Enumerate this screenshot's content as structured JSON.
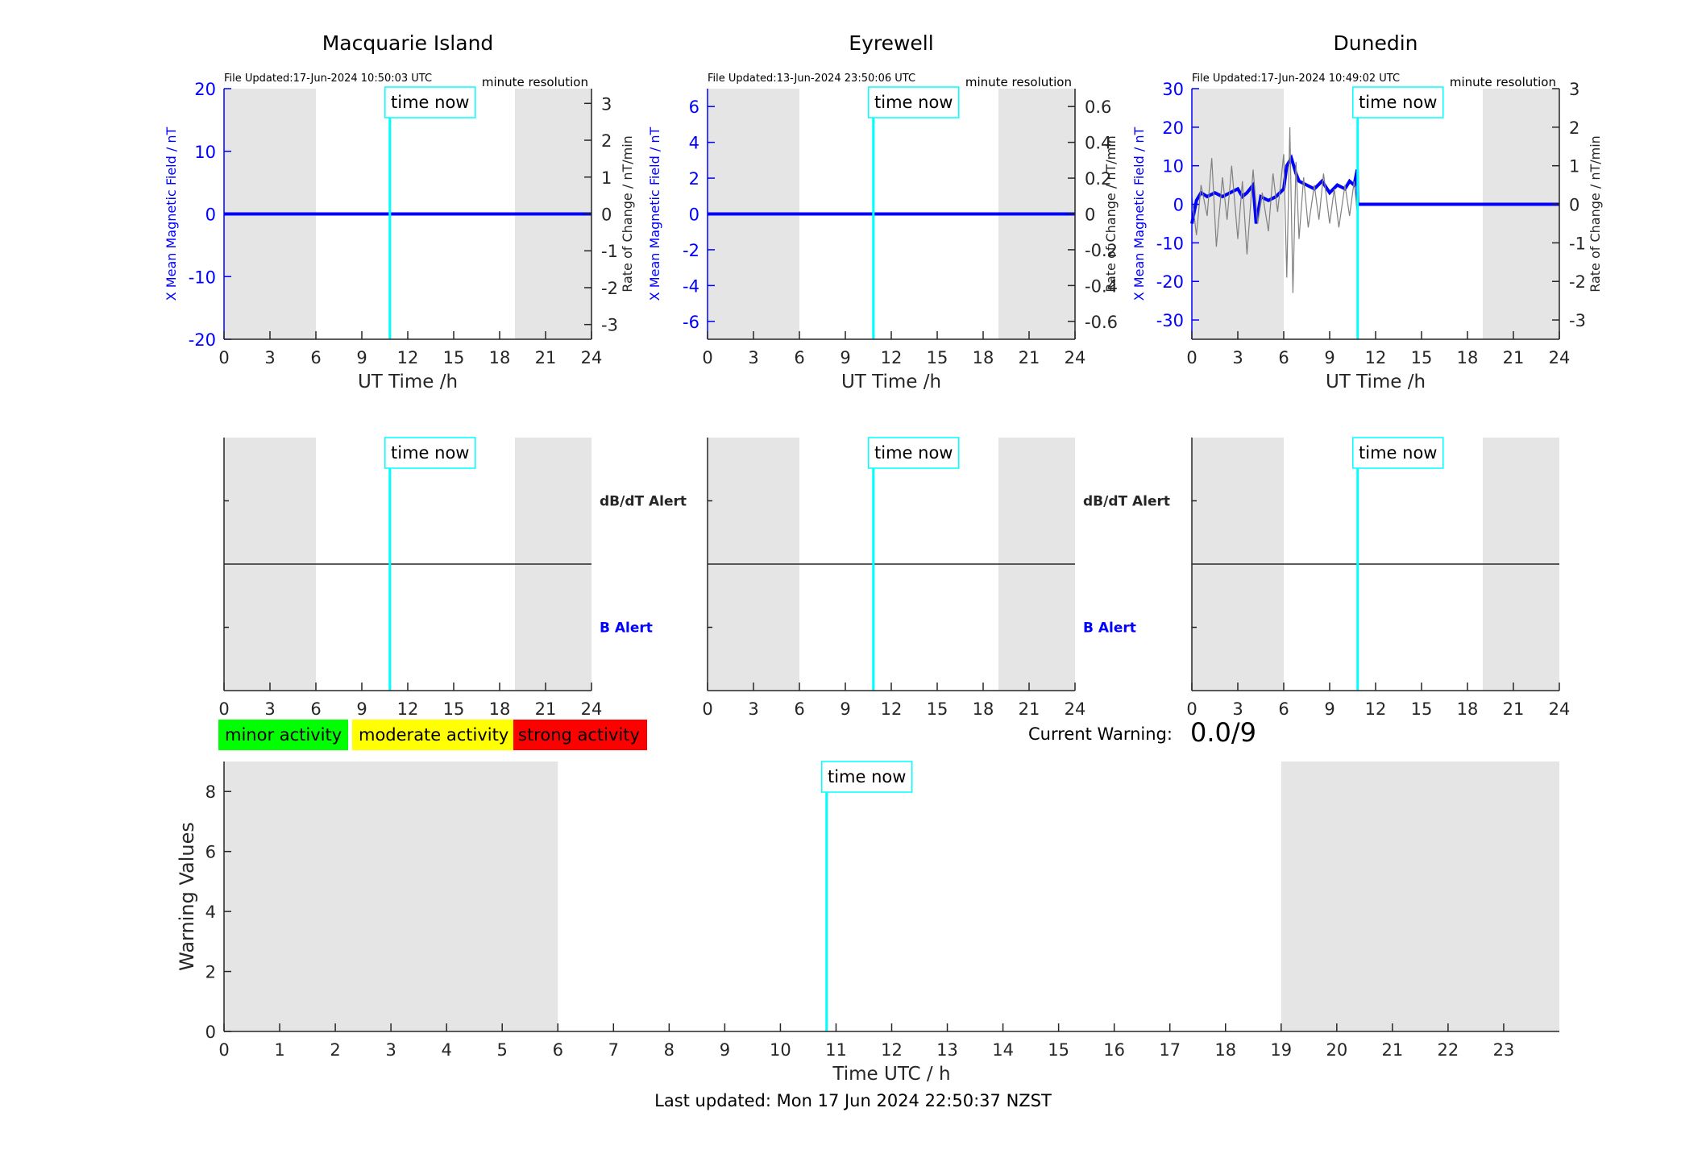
{
  "window_title": "",
  "station_panels": [
    {
      "title": "Macquarie Island",
      "file_updated": "File Updated:17-Jun-2024 10:50:03 UTC",
      "resolution": "minute resolution",
      "ylabel_left": "X Mean Magnetic Field / nT",
      "ylabel_right": "Rate of Change / nT/min",
      "xlabel": "UT Time /h",
      "time_now_label": "time now"
    },
    {
      "title": "Eyrewell",
      "file_updated": "File Updated:13-Jun-2024 23:50:06 UTC",
      "resolution": "minute resolution",
      "ylabel_left": "X Mean Magnetic Field / nT",
      "ylabel_right": "Rate of Change / nT/min",
      "xlabel": "UT Time /h",
      "time_now_label": "time now"
    },
    {
      "title": "Dunedin",
      "file_updated": "File Updated:17-Jun-2024 10:49:02 UTC",
      "resolution": "minute resolution",
      "ylabel_left": "X Mean Magnetic Field / nT",
      "ylabel_right": "Rate of Change / nT/min",
      "xlabel": "UT Time /h",
      "time_now_label": "time now"
    }
  ],
  "alert_panels": [
    {
      "dbdt_label": "dB/dT Alert",
      "b_label": "B Alert",
      "time_now_label": "time now"
    },
    {
      "dbdt_label": "dB/dT Alert",
      "b_label": "B Alert",
      "time_now_label": "time now"
    },
    {
      "dbdt_label": "",
      "b_label": "",
      "time_now_label": "time now"
    }
  ],
  "legend": {
    "items": [
      {
        "label": "minor activity",
        "color": "#00ff00"
      },
      {
        "label": "moderate activity",
        "color": "#ffff00"
      },
      {
        "label": "strong activity",
        "color": "#ff0000"
      }
    ]
  },
  "current_warning": {
    "label": "Current Warning:",
    "value": "0.0/9"
  },
  "warning_panel": {
    "ylabel": "Warning Values",
    "xlabel": "Time UTC / h",
    "time_now_label": "time now"
  },
  "footer": {
    "last_updated": "Last updated: Mon 17 Jun 2024 22:50:37 NZST"
  },
  "colors": {
    "night_shade": "#e5e5e5",
    "time_now_line": "#00ffff",
    "field_series": "#0000ff",
    "rate_series": "#808080",
    "alert_b_label": "#0000ff"
  },
  "chart_data": [
    {
      "type": "line",
      "title": "Macquarie Island",
      "xlabel": "UT Time /h",
      "ylabel": "X Mean Magnetic Field / nT",
      "ylabel_right": "Rate of Change / nT/min",
      "xlim": [
        0,
        24
      ],
      "xticks": [
        0,
        3,
        6,
        9,
        12,
        15,
        18,
        21,
        24
      ],
      "ylim": [
        -20,
        20
      ],
      "yticks": [
        -20,
        -10,
        0,
        10,
        20
      ],
      "ylim_right": [
        -3.4,
        3.4
      ],
      "yticks_right": [
        -3,
        -2,
        -1,
        0,
        1,
        2,
        3
      ],
      "night_bands": [
        [
          0,
          6
        ],
        [
          19,
          24
        ]
      ],
      "time_now": 10.83,
      "series": [
        {
          "name": "",
          "axis": "left",
          "x": [
            0,
            24
          ],
          "values": [
            0,
            0
          ]
        }
      ]
    },
    {
      "type": "line",
      "title": "Eyrewell",
      "xlabel": "UT Time /h",
      "ylabel": "X Mean Magnetic Field / nT",
      "ylabel_right": "Rate of Change / nT/min",
      "xlim": [
        0,
        24
      ],
      "xticks": [
        0,
        3,
        6,
        9,
        12,
        15,
        18,
        21,
        24
      ],
      "ylim": [
        -7,
        7
      ],
      "yticks": [
        -6,
        -4,
        -2,
        0,
        2,
        4,
        6
      ],
      "ylim_right": [
        -0.7,
        0.7
      ],
      "yticks_right": [
        -0.6,
        -0.4,
        -0.2,
        0,
        0.2,
        0.4,
        0.6
      ],
      "night_bands": [
        [
          0,
          6
        ],
        [
          19,
          24
        ]
      ],
      "time_now": 10.83,
      "series": [
        {
          "name": "",
          "axis": "left",
          "x": [
            0,
            24
          ],
          "values": [
            0,
            0
          ]
        }
      ]
    },
    {
      "type": "line",
      "title": "Dunedin",
      "xlabel": "UT Time /h",
      "ylabel": "X Mean Magnetic Field / nT",
      "ylabel_right": "Rate of Change / nT/min",
      "xlim": [
        0,
        24
      ],
      "xticks": [
        0,
        3,
        6,
        9,
        12,
        15,
        18,
        21,
        24
      ],
      "ylim": [
        -35,
        30
      ],
      "yticks": [
        -30,
        -20,
        -10,
        0,
        10,
        20,
        30
      ],
      "ylim_right": [
        -3.5,
        3
      ],
      "yticks_right": [
        -3,
        -2,
        -1,
        0,
        1,
        2,
        3
      ],
      "night_bands": [
        [
          0,
          6
        ],
        [
          19,
          24
        ]
      ],
      "time_now": 10.83,
      "series": [
        {
          "name": "",
          "axis": "left",
          "x": [
            0,
            0.3,
            0.6,
            1.0,
            1.5,
            2.0,
            2.5,
            3.0,
            3.3,
            3.6,
            4.0,
            4.2,
            4.5,
            5.0,
            5.5,
            6.0,
            6.2,
            6.5,
            6.8,
            7.0,
            7.5,
            8.0,
            8.5,
            9.0,
            9.5,
            10.0,
            10.3,
            10.6,
            10.8,
            10.83,
            11.0,
            24
          ],
          "values": [
            -5,
            1,
            3,
            2,
            3,
            2,
            3,
            4,
            2,
            3,
            5,
            -5,
            2,
            1,
            2,
            4,
            10,
            12,
            8,
            6,
            5,
            4,
            6,
            3,
            5,
            4,
            6,
            5,
            9,
            0,
            0,
            0
          ]
        },
        {
          "name": "",
          "axis": "right",
          "x": [
            0,
            0.3,
            0.6,
            1.0,
            1.3,
            1.6,
            2.0,
            2.3,
            2.6,
            3.0,
            3.3,
            3.6,
            4.0,
            4.3,
            4.6,
            5.0,
            5.3,
            5.6,
            6.0,
            6.2,
            6.4,
            6.6,
            6.8,
            7.0,
            7.3,
            7.6,
            8.0,
            8.3,
            8.6,
            9.0,
            9.3,
            9.6,
            10.0,
            10.3,
            10.6,
            10.8
          ],
          "values": [
            0.2,
            -0.8,
            0.5,
            -0.3,
            1.2,
            -1.1,
            0.7,
            -0.4,
            1.0,
            -0.9,
            0.6,
            -1.3,
            0.9,
            -0.5,
            0.3,
            -0.7,
            0.8,
            -0.2,
            1.3,
            -1.9,
            2.0,
            -2.3,
            1.1,
            -0.9,
            0.7,
            -0.6,
            0.5,
            -0.4,
            0.8,
            -0.5,
            0.4,
            -0.6,
            0.5,
            -0.3,
            0.6,
            -0.2
          ]
        }
      ]
    },
    {
      "type": "line",
      "title": "",
      "xlabel": "",
      "xlim": [
        0,
        24
      ],
      "xticks": [
        0,
        3,
        6,
        9,
        12,
        15,
        18,
        21,
        24
      ],
      "ylim": [
        -1,
        1
      ],
      "night_bands": [
        [
          0,
          6
        ],
        [
          19,
          24
        ]
      ],
      "time_now": 10.83,
      "series": [],
      "threshold_line": 0
    },
    {
      "type": "line",
      "title": "",
      "xlabel": "",
      "xlim": [
        0,
        24
      ],
      "xticks": [
        0,
        3,
        6,
        9,
        12,
        15,
        18,
        21,
        24
      ],
      "ylim": [
        -1,
        1
      ],
      "night_bands": [
        [
          0,
          6
        ],
        [
          19,
          24
        ]
      ],
      "time_now": 10.83,
      "series": [],
      "threshold_line": 0
    },
    {
      "type": "line",
      "title": "",
      "xlabel": "",
      "xlim": [
        0,
        24
      ],
      "xticks": [
        0,
        3,
        6,
        9,
        12,
        15,
        18,
        21,
        24
      ],
      "ylim": [
        -1,
        1
      ],
      "night_bands": [
        [
          0,
          6
        ],
        [
          19,
          24
        ]
      ],
      "time_now": 10.83,
      "series": [],
      "threshold_line": 0
    },
    {
      "type": "bar",
      "title": "",
      "xlabel": "Time UTC / h",
      "ylabel": "Warning Values",
      "xlim": [
        0,
        24
      ],
      "xticks": [
        0,
        1,
        2,
        3,
        4,
        5,
        6,
        7,
        8,
        9,
        10,
        11,
        12,
        13,
        14,
        15,
        16,
        17,
        18,
        19,
        20,
        21,
        22,
        23
      ],
      "ylim": [
        0,
        9
      ],
      "yticks": [
        0,
        2,
        4,
        6,
        8
      ],
      "night_bands": [
        [
          0,
          6
        ],
        [
          19,
          24
        ]
      ],
      "time_now": 10.83,
      "series": []
    }
  ]
}
